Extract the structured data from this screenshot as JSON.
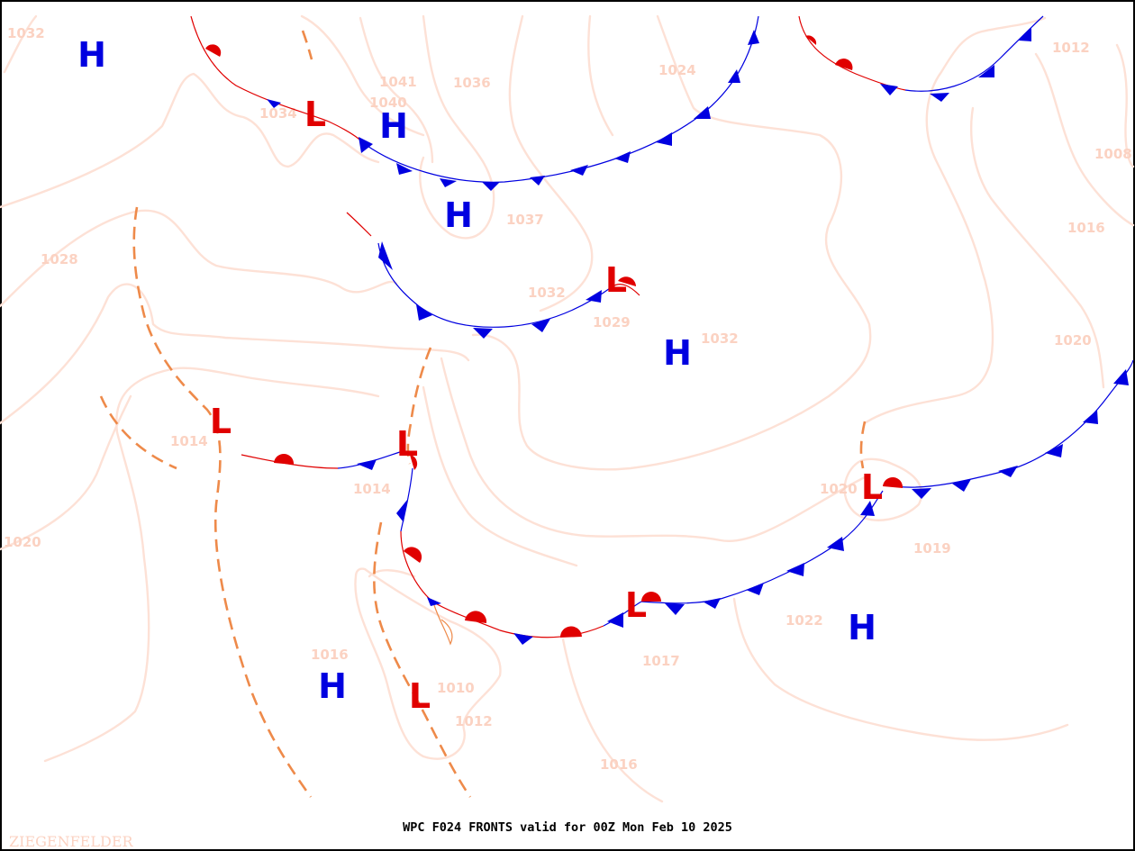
{
  "map": {
    "title": "WPC F024 FRONTS valid for 00Z Mon Feb 10 2025",
    "author": "ZIEGENFELDER",
    "colors": {
      "high": "#0000e0",
      "low": "#e00000",
      "warm_front": "#e00000",
      "cold_front": "#0000e0",
      "isobar": "#fde1d6",
      "isobar_label": "#fbd2c2",
      "trough": "#ee8a4a"
    },
    "pressure_centers": [
      {
        "type": "high",
        "symbol": "H"
      },
      {
        "type": "high",
        "symbol": "H"
      },
      {
        "type": "high",
        "symbol": "H"
      },
      {
        "type": "high",
        "symbol": "H"
      },
      {
        "type": "high",
        "symbol": "H"
      },
      {
        "type": "high",
        "symbol": "H"
      },
      {
        "type": "low",
        "symbol": "L"
      },
      {
        "type": "low",
        "symbol": "L"
      },
      {
        "type": "low",
        "symbol": "L"
      },
      {
        "type": "low",
        "symbol": "L"
      },
      {
        "type": "low",
        "symbol": "L"
      },
      {
        "type": "low",
        "symbol": "L"
      },
      {
        "type": "low",
        "symbol": "L"
      }
    ],
    "isobar_labels": [
      "1032",
      "1034",
      "1041",
      "1040",
      "1036",
      "1024",
      "1012",
      "1008",
      "1037",
      "1028",
      "1032",
      "1029",
      "1032",
      "1016",
      "1020",
      "1014",
      "1014",
      "1020",
      "1020",
      "1019",
      "1022",
      "1016",
      "1017",
      "1010",
      "1012",
      "1016"
    ]
  }
}
